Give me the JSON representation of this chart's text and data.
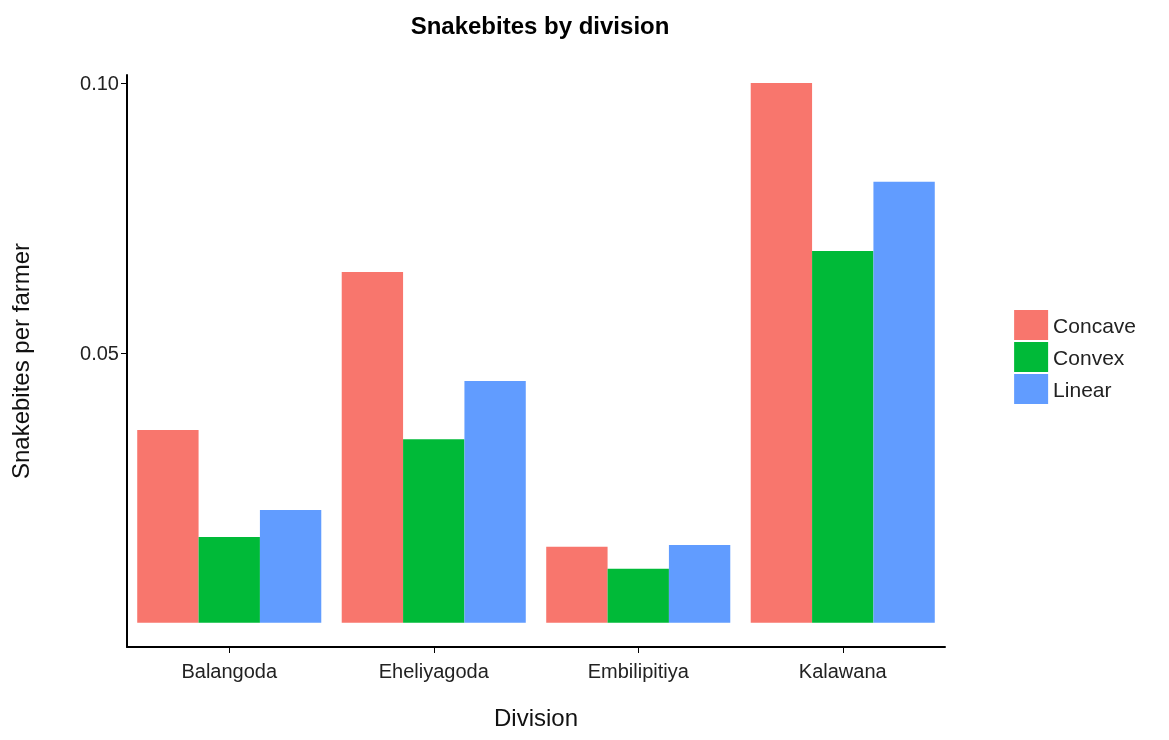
{
  "chart_data": {
    "type": "bar",
    "title": "Snakebites by division",
    "xlabel": "Division",
    "ylabel": "Snakebites per farmer",
    "categories": [
      "Balangoda",
      "Eheliyagoda",
      "Embilipitiya",
      "Kalawana"
    ],
    "series": [
      {
        "name": "Concave",
        "color": "#f8766d",
        "values": [
          0.0357,
          0.065,
          0.0141,
          0.1
        ]
      },
      {
        "name": "Convex",
        "color": "#00ba38",
        "values": [
          0.0159,
          0.034,
          0.01,
          0.0689
        ]
      },
      {
        "name": "Linear",
        "color": "#619cff",
        "values": [
          0.0209,
          0.0448,
          0.0144,
          0.0817
        ]
      }
    ],
    "ylim": [
      -0.0045,
      0.1015
    ],
    "yticks": [
      {
        "value": 0.05,
        "label": "0.05"
      },
      {
        "value": 0.1,
        "label": "0.10"
      }
    ],
    "grid": false,
    "legend": "right"
  }
}
